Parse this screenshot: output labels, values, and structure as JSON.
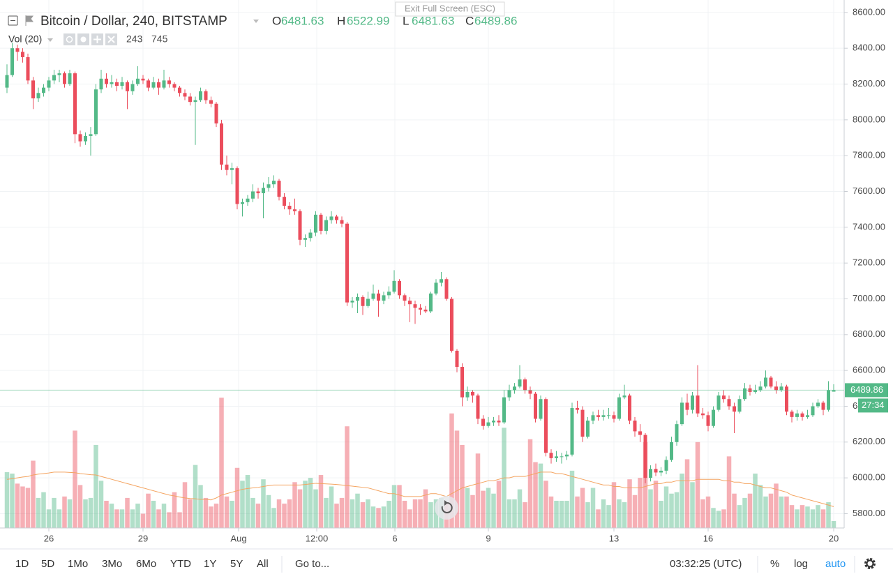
{
  "header": {
    "symbol": "Bitcoin / Dollar, 240, BITSTAMP",
    "ohlc_labels": [
      "O",
      "H",
      "L",
      "C"
    ]
  },
  "indicator": {
    "name": "Vol (20)"
  },
  "tooltip": "Exit Full Screen (ESC)",
  "chart_data": {
    "type": "candlestick",
    "ohlc": [
      [
        8180,
        8310,
        8150,
        8250
      ],
      [
        8250,
        8430,
        8240,
        8400
      ],
      [
        8400,
        8420,
        8330,
        8380
      ],
      [
        8380,
        8400,
        8320,
        8350
      ],
      [
        8350,
        8370,
        8200,
        8220
      ],
      [
        8220,
        8240,
        8060,
        8120
      ],
      [
        8120,
        8180,
        8100,
        8150
      ],
      [
        8150,
        8200,
        8130,
        8180
      ],
      [
        8180,
        8240,
        8160,
        8220
      ],
      [
        8220,
        8280,
        8200,
        8250
      ],
      [
        8250,
        8280,
        8210,
        8260
      ],
      [
        8260,
        8270,
        8180,
        8200
      ],
      [
        8200,
        8280,
        8190,
        8260
      ],
      [
        8260,
        8270,
        7870,
        7920
      ],
      [
        7920,
        7940,
        7850,
        7880
      ],
      [
        7880,
        7930,
        7860,
        7910
      ],
      [
        7910,
        7960,
        7800,
        7920
      ],
      [
        7920,
        8200,
        7910,
        8170
      ],
      [
        8170,
        8280,
        8150,
        8230
      ],
      [
        8230,
        8260,
        8180,
        8200
      ],
      [
        8200,
        8250,
        8180,
        8210
      ],
      [
        8210,
        8230,
        8160,
        8190
      ],
      [
        8190,
        8240,
        8170,
        8210
      ],
      [
        8210,
        8220,
        8060,
        8160
      ],
      [
        8160,
        8220,
        8140,
        8200
      ],
      [
        8200,
        8300,
        8190,
        8230
      ],
      [
        8230,
        8250,
        8200,
        8220
      ],
      [
        8220,
        8230,
        8160,
        8180
      ],
      [
        8180,
        8240,
        8170,
        8210
      ],
      [
        8210,
        8230,
        8140,
        8180
      ],
      [
        8180,
        8280,
        8170,
        8220
      ],
      [
        8220,
        8240,
        8180,
        8200
      ],
      [
        8200,
        8210,
        8160,
        8180
      ],
      [
        8180,
        8190,
        8130,
        8150
      ],
      [
        8150,
        8170,
        8110,
        8130
      ],
      [
        8130,
        8150,
        8080,
        8100
      ],
      [
        8100,
        8130,
        7860,
        8110
      ],
      [
        8110,
        8180,
        8100,
        8160
      ],
      [
        8160,
        8170,
        8090,
        8110
      ],
      [
        8110,
        8130,
        8070,
        8090
      ],
      [
        8090,
        8100,
        7960,
        7980
      ],
      [
        7980,
        8000,
        7720,
        7750
      ],
      [
        7750,
        7800,
        7690,
        7720
      ],
      [
        7720,
        7760,
        7640,
        7730
      ],
      [
        7730,
        7740,
        7500,
        7530
      ],
      [
        7530,
        7560,
        7460,
        7540
      ],
      [
        7540,
        7580,
        7520,
        7560
      ],
      [
        7560,
        7640,
        7540,
        7600
      ],
      [
        7600,
        7620,
        7560,
        7590
      ],
      [
        7590,
        7650,
        7450,
        7620
      ],
      [
        7620,
        7680,
        7600,
        7640
      ],
      [
        7640,
        7690,
        7620,
        7660
      ],
      [
        7660,
        7670,
        7550,
        7570
      ],
      [
        7570,
        7590,
        7500,
        7520
      ],
      [
        7520,
        7540,
        7470,
        7500
      ],
      [
        7500,
        7560,
        7470,
        7490
      ],
      [
        7490,
        7500,
        7300,
        7330
      ],
      [
        7330,
        7360,
        7290,
        7340
      ],
      [
        7340,
        7390,
        7320,
        7370
      ],
      [
        7370,
        7490,
        7350,
        7470
      ],
      [
        7470,
        7480,
        7360,
        7380
      ],
      [
        7380,
        7460,
        7360,
        7440
      ],
      [
        7440,
        7490,
        7420,
        7460
      ],
      [
        7460,
        7470,
        7420,
        7440
      ],
      [
        7440,
        7460,
        7400,
        7420
      ],
      [
        7420,
        7430,
        6960,
        6980
      ],
      [
        6980,
        7010,
        6950,
        6990
      ],
      [
        6990,
        7030,
        6920,
        7010
      ],
      [
        7010,
        7020,
        6910,
        6960
      ],
      [
        6960,
        7040,
        6950,
        7000
      ],
      [
        7000,
        7080,
        6990,
        7030
      ],
      [
        7030,
        7050,
        6900,
        6990
      ],
      [
        6990,
        7040,
        6970,
        7020
      ],
      [
        7020,
        7070,
        7000,
        7040
      ],
      [
        7040,
        7160,
        7030,
        7100
      ],
      [
        7100,
        7110,
        7000,
        7020
      ],
      [
        7020,
        7030,
        6960,
        6990
      ],
      [
        6990,
        7010,
        6870,
        6970
      ],
      [
        6970,
        6990,
        6860,
        6950
      ],
      [
        6950,
        6970,
        6910,
        6940
      ],
      [
        6940,
        6960,
        6920,
        6930
      ],
      [
        6930,
        7040,
        6920,
        7030
      ],
      [
        7030,
        7110,
        7020,
        7090
      ],
      [
        7090,
        7150,
        7070,
        7110
      ],
      [
        7110,
        7120,
        6990,
        7000
      ],
      [
        7000,
        7010,
        6700,
        6710
      ],
      [
        6710,
        6720,
        6590,
        6620
      ],
      [
        6620,
        6640,
        6400,
        6450
      ],
      [
        6450,
        6510,
        6430,
        6480
      ],
      [
        6480,
        6490,
        6420,
        6460
      ],
      [
        6460,
        6470,
        6300,
        6330
      ],
      [
        6330,
        6350,
        6270,
        6290
      ],
      [
        6290,
        6340,
        6280,
        6310
      ],
      [
        6310,
        6340,
        6290,
        6320
      ],
      [
        6320,
        6350,
        6290,
        6310
      ],
      [
        6310,
        6490,
        6300,
        6450
      ],
      [
        6450,
        6520,
        6430,
        6490
      ],
      [
        6490,
        6530,
        6470,
        6510
      ],
      [
        6510,
        6630,
        6500,
        6550
      ],
      [
        6550,
        6560,
        6470,
        6490
      ],
      [
        6490,
        6510,
        6440,
        6470
      ],
      [
        6470,
        6480,
        6310,
        6330
      ],
      [
        6330,
        6460,
        6320,
        6440
      ],
      [
        6440,
        6450,
        6120,
        6140
      ],
      [
        6140,
        6160,
        6080,
        6110
      ],
      [
        6110,
        6150,
        6090,
        6120
      ],
      [
        6120,
        6140,
        6080,
        6120
      ],
      [
        6120,
        6150,
        6100,
        6130
      ],
      [
        6130,
        6420,
        6120,
        6390
      ],
      [
        6390,
        6430,
        6360,
        6380
      ],
      [
        6380,
        6400,
        6200,
        6230
      ],
      [
        6230,
        6340,
        6220,
        6320
      ],
      [
        6320,
        6370,
        6300,
        6350
      ],
      [
        6350,
        6380,
        6320,
        6340
      ],
      [
        6340,
        6380,
        6320,
        6350
      ],
      [
        6350,
        6390,
        6330,
        6350
      ],
      [
        6350,
        6370,
        6310,
        6330
      ],
      [
        6330,
        6470,
        6320,
        6450
      ],
      [
        6450,
        6520,
        6440,
        6460
      ],
      [
        6460,
        6470,
        6300,
        6320
      ],
      [
        6320,
        6340,
        6230,
        6260
      ],
      [
        6260,
        6300,
        6200,
        6240
      ],
      [
        6240,
        6250,
        5970,
        6000
      ],
      [
        6000,
        6070,
        5980,
        6050
      ],
      [
        6050,
        6080,
        6010,
        6030
      ],
      [
        6030,
        6060,
        6010,
        6040
      ],
      [
        6040,
        6120,
        6020,
        6100
      ],
      [
        6100,
        6230,
        6090,
        6200
      ],
      [
        6200,
        6320,
        6180,
        6300
      ],
      [
        6300,
        6450,
        6290,
        6420
      ],
      [
        6420,
        6470,
        6350,
        6380
      ],
      [
        6380,
        6480,
        6360,
        6460
      ],
      [
        6460,
        6630,
        6340,
        6360
      ],
      [
        6360,
        6390,
        6330,
        6350
      ],
      [
        6350,
        6370,
        6260,
        6290
      ],
      [
        6290,
        6400,
        6280,
        6380
      ],
      [
        6380,
        6480,
        6370,
        6460
      ],
      [
        6460,
        6490,
        6420,
        6440
      ],
      [
        6440,
        6460,
        6380,
        6400
      ],
      [
        6400,
        6420,
        6250,
        6370
      ],
      [
        6370,
        6460,
        6360,
        6440
      ],
      [
        6440,
        6530,
        6430,
        6500
      ],
      [
        6500,
        6520,
        6460,
        6480
      ],
      [
        6480,
        6520,
        6470,
        6490
      ],
      [
        6490,
        6540,
        6480,
        6510
      ],
      [
        6510,
        6600,
        6500,
        6560
      ],
      [
        6560,
        6570,
        6500,
        6510
      ],
      [
        6510,
        6540,
        6470,
        6490
      ],
      [
        6490,
        6530,
        6480,
        6510
      ],
      [
        6510,
        6520,
        6350,
        6370
      ],
      [
        6370,
        6380,
        6310,
        6340
      ],
      [
        6340,
        6380,
        6320,
        6360
      ],
      [
        6360,
        6370,
        6320,
        6340
      ],
      [
        6340,
        6380,
        6330,
        6350
      ],
      [
        6350,
        6420,
        6340,
        6400
      ],
      [
        6400,
        6440,
        6390,
        6420
      ],
      [
        6420,
        6430,
        6350,
        6380
      ],
      [
        6380,
        6540,
        6370,
        6490
      ],
      [
        6481.63,
        6522.99,
        6481.63,
        6489.86
      ]
    ],
    "volumes": [
      1950,
      1900,
      1550,
      1450,
      1400,
      2350,
      1050,
      1250,
      650,
      1050,
      650,
      1100,
      1000,
      3400,
      1500,
      1000,
      1050,
      2900,
      1650,
      950,
      850,
      650,
      650,
      1050,
      650,
      850,
      500,
      1200,
      950,
      650,
      850,
      550,
      1250,
      550,
      1600,
      1000,
      2200,
      1500,
      1050,
      750,
      850,
      4550,
      1100,
      950,
      2100,
      1650,
      1850,
      1050,
      850,
      1700,
      1150,
      700,
      1000,
      850,
      1000,
      1600,
      1350,
      1650,
      1750,
      1350,
      1850,
      1050,
      1450,
      850,
      1050,
      3550,
      1000,
      1200,
      900,
      1000,
      750,
      700,
      750,
      950,
      1500,
      1500,
      950,
      650,
      1000,
      1000,
      1350,
      900,
      1000,
      1050,
      900,
      4000,
      3400,
      2900,
      1400,
      1150,
      2600,
      1300,
      1400,
      1200,
      1650,
      3500,
      1000,
      1000,
      1350,
      900,
      3100,
      2300,
      2250,
      1650,
      1100,
      950,
      950,
      950,
      2000,
      1100,
      1400,
      900,
      1400,
      650,
      1000,
      800,
      1600,
      1000,
      900,
      1700,
      1150,
      1750,
      3000,
      1350,
      1650,
      950,
      1450,
      1200,
      1250,
      1900,
      2400,
      1600,
      3000,
      1000,
      1100,
      700,
      600,
      650,
      2500,
      1200,
      800,
      1050,
      1200,
      1900,
      1500,
      1100,
      1200,
      1550,
      1100,
      1100,
      800,
      650,
      800,
      750,
      650,
      800,
      650,
      900,
      243
    ],
    "volume_ma": [
      1700,
      1720,
      1750,
      1780,
      1800,
      1850,
      1880,
      1900,
      1920,
      1950,
      1950,
      1950,
      1940,
      1930,
      1900,
      1880,
      1860,
      1850,
      1800,
      1750,
      1700,
      1650,
      1600,
      1550,
      1500,
      1450,
      1400,
      1350,
      1300,
      1250,
      1200,
      1150,
      1120,
      1080,
      1050,
      1030,
      1020,
      1000,
      1000,
      980,
      1050,
      1150,
      1200,
      1250,
      1300,
      1350,
      1380,
      1400,
      1420,
      1450,
      1480,
      1500,
      1500,
      1500,
      1500,
      1500,
      1500,
      1520,
      1540,
      1560,
      1550,
      1540,
      1530,
      1520,
      1500,
      1480,
      1460,
      1440,
      1420,
      1400,
      1350,
      1300,
      1250,
      1200,
      1200,
      1150,
      1100,
      1100,
      1100,
      1100,
      1150,
      1200,
      1200,
      1150,
      1100,
      1200,
      1300,
      1400,
      1450,
      1500,
      1550,
      1600,
      1650,
      1650,
      1700,
      1750,
      1750,
      1800,
      1800,
      1800,
      1850,
      1900,
      1950,
      1950,
      1950,
      1900,
      1900,
      1850,
      1800,
      1750,
      1700,
      1650,
      1600,
      1550,
      1500,
      1500,
      1450,
      1450,
      1400,
      1400,
      1400,
      1400,
      1450,
      1500,
      1550,
      1550,
      1600,
      1600,
      1650,
      1650,
      1650,
      1650,
      1700,
      1700,
      1700,
      1700,
      1700,
      1650,
      1650,
      1600,
      1600,
      1550,
      1550,
      1500,
      1450,
      1400,
      1400,
      1350,
      1300,
      1250,
      1150,
      1100,
      1050,
      1000,
      950,
      900,
      850,
      800,
      745
    ],
    "ylim": [
      5720,
      8650
    ],
    "yticks": [
      {
        "value": 5800,
        "label": "5800.00"
      },
      {
        "value": 6000,
        "label": "6000.00"
      },
      {
        "value": 6200,
        "label": "6200.00"
      },
      {
        "value": 6400,
        "label": "6400.00"
      },
      {
        "value": 6600,
        "label": "6600.00"
      },
      {
        "value": 6800,
        "label": "6800.00"
      },
      {
        "value": 7000,
        "label": "7000.00"
      },
      {
        "value": 7200,
        "label": "7200.00"
      },
      {
        "value": 7400,
        "label": "7400.00"
      },
      {
        "value": 7600,
        "label": "7600.00"
      },
      {
        "value": 7800,
        "label": "7800.00"
      },
      {
        "value": 8000,
        "label": "8000.00"
      },
      {
        "value": 8200,
        "label": "8200.00"
      },
      {
        "value": 8400,
        "label": "8400.00"
      },
      {
        "value": 8600,
        "label": "8600.00"
      }
    ],
    "vlim": [
      0,
      4700
    ],
    "x_labels": [
      "26",
      "29",
      "Aug",
      "12:00",
      "6",
      "9",
      "13",
      "16",
      "20"
    ],
    "countdown": "27:34",
    "up_color": "#53b987",
    "down_color": "#eb4d5c",
    "ma_color": "#f4a460"
  },
  "toolbar": {
    "ranges": [
      "1D",
      "5D",
      "1Mo",
      "3Mo",
      "6Mo",
      "YTD",
      "1Y",
      "5Y",
      "All"
    ],
    "goto": "Go to...",
    "clock": "03:32:25 (UTC)",
    "percent": "%",
    "log": "log",
    "auto": "auto"
  }
}
